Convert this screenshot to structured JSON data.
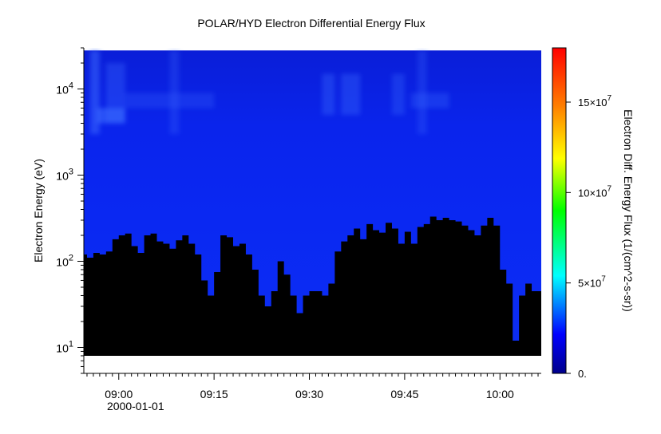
{
  "chart_data": {
    "type": "heatmap",
    "title": "POLAR/HYD  Electron Differential Energy Flux",
    "ylabel": "Electron Energy (eV)",
    "colorbar_label": "Electron Diff. Energy Flux (1/(cm^2-s-sr))",
    "x_tick_labels": [
      "09:00",
      "09:15",
      "09:30",
      "09:45",
      "10:00"
    ],
    "x_tick_minutes": [
      540,
      555,
      570,
      585,
      600
    ],
    "x_date_label": "2000-01-01",
    "xlim_minutes": [
      534.5,
      606.5
    ],
    "ylim": [
      5,
      30000
    ],
    "yscale": "log",
    "y_tick_labels": [
      {
        "base": "10",
        "exp": "1",
        "value": 10
      },
      {
        "base": "10",
        "exp": "2",
        "value": 100
      },
      {
        "base": "10",
        "exp": "3",
        "value": 1000
      },
      {
        "base": "10",
        "exp": "4",
        "value": 10000
      }
    ],
    "data_energy_range": [
      8,
      28000
    ],
    "colorbar_ticks": [
      {
        "label": "0.",
        "value": 0
      },
      {
        "label": "5×10",
        "exp": "7",
        "value": 50000000
      },
      {
        "label": "10×10",
        "exp": "7",
        "value": 100000000
      },
      {
        "label": "15×10",
        "exp": "7",
        "value": 150000000
      }
    ],
    "colorbar_range": [
      0,
      180000000
    ],
    "colormap": [
      "#00008b",
      "#0000ff",
      "#00ffff",
      "#00ff00",
      "#ffff00",
      "#ff8000",
      "#ff0000"
    ],
    "fill_color": "#000000",
    "cutoff_energy_eV": {
      "minutes": [
        534.5,
        535,
        536,
        537,
        538,
        539,
        540,
        541,
        542,
        543,
        544,
        545,
        546,
        547,
        548,
        549,
        550,
        551,
        552,
        553,
        554,
        555,
        556,
        557,
        558,
        559,
        560,
        561,
        562,
        563,
        564,
        565,
        566,
        567,
        568,
        569,
        570,
        571,
        572,
        573,
        574,
        575,
        576,
        577,
        578,
        579,
        580,
        581,
        582,
        583,
        584,
        585,
        586,
        587,
        588,
        589,
        590,
        591,
        592,
        593,
        594,
        595,
        596,
        597,
        598,
        599,
        600,
        601,
        602,
        603,
        604,
        605,
        606.5
      ],
      "energy": [
        120,
        110,
        125,
        120,
        130,
        180,
        200,
        210,
        150,
        125,
        200,
        210,
        170,
        160,
        140,
        175,
        200,
        160,
        120,
        60,
        40,
        75,
        200,
        190,
        150,
        160,
        120,
        80,
        40,
        30,
        45,
        100,
        70,
        40,
        25,
        40,
        45,
        45,
        40,
        55,
        130,
        170,
        200,
        240,
        180,
        270,
        230,
        215,
        280,
        240,
        160,
        220,
        160,
        250,
        270,
        330,
        300,
        320,
        300,
        290,
        260,
        230,
        200,
        260,
        320,
        260,
        80,
        55,
        12,
        40,
        55,
        45,
        15
      ]
    },
    "bright_patches": [
      {
        "x_minutes": [
          535.5,
          537
        ],
        "y_eV": [
          3000,
          28000
        ],
        "intensity": 0.5
      },
      {
        "x_minutes": [
          538,
          541
        ],
        "y_eV": [
          4000,
          20000
        ],
        "intensity": 0.33
      },
      {
        "x_minutes": [
          536.5,
          541
        ],
        "y_eV": [
          4000,
          6000
        ],
        "intensity": 0.6
      },
      {
        "x_minutes": [
          541,
          555
        ],
        "y_eV": [
          6000,
          9000
        ],
        "intensity": 0.25
      },
      {
        "x_minutes": [
          548,
          549.5
        ],
        "y_eV": [
          3000,
          28000
        ],
        "intensity": 0.25
      },
      {
        "x_minutes": [
          572,
          574
        ],
        "y_eV": [
          5000,
          15000
        ],
        "intensity": 0.35
      },
      {
        "x_minutes": [
          575,
          578
        ],
        "y_eV": [
          5000,
          15000
        ],
        "intensity": 0.35
      },
      {
        "x_minutes": [
          583,
          585
        ],
        "y_eV": [
          5000,
          15000
        ],
        "intensity": 0.3
      },
      {
        "x_minutes": [
          586,
          592
        ],
        "y_eV": [
          6000,
          9000
        ],
        "intensity": 0.3
      },
      {
        "x_minutes": [
          587,
          588.5
        ],
        "y_eV": [
          3000,
          28000
        ],
        "intensity": 0.25
      }
    ]
  }
}
